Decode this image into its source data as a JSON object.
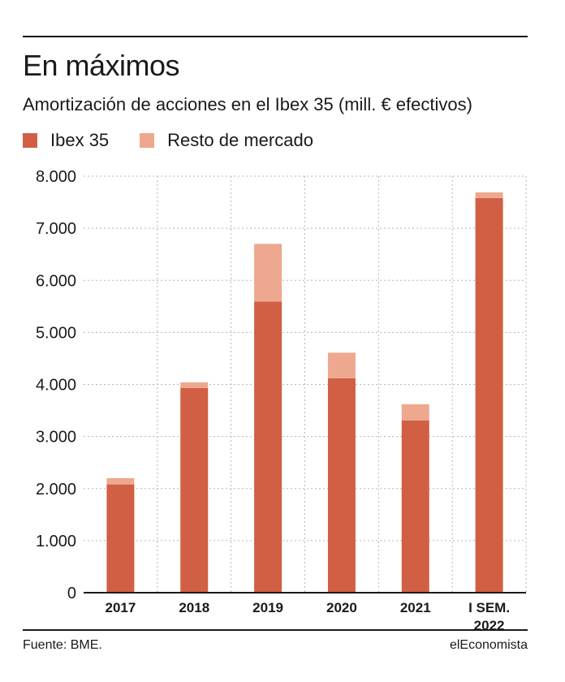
{
  "header": {
    "title": "En máximos",
    "subtitle": "Amortización de acciones en el Ibex 35 (mill. € efectivos)"
  },
  "footer": {
    "source": "Fuente: BME.",
    "brand": "elEconomista"
  },
  "colors": {
    "ibex": "#d15f44",
    "resto": "#eea890",
    "grid": "#b5b5b5",
    "text": "#1a1a1a"
  },
  "chart_data": {
    "type": "bar",
    "stacked": true,
    "categories": [
      "2017",
      "2018",
      "2019",
      "2020",
      "2021",
      "I SEM.\n2022"
    ],
    "series": [
      {
        "name": "Ibex 35",
        "values": [
          2080,
          3930,
          5590,
          4120,
          3310,
          7580
        ]
      },
      {
        "name": "Resto de mercado",
        "values": [
          120,
          110,
          1110,
          490,
          310,
          110
        ]
      }
    ],
    "ylim": [
      0,
      8000
    ],
    "yticks": [
      0,
      1000,
      2000,
      3000,
      4000,
      5000,
      6000,
      7000,
      8000
    ],
    "ytick_labels": [
      "0",
      "1.000",
      "2.000",
      "3.000",
      "4.000",
      "5.000",
      "6.000",
      "7.000",
      "8.000"
    ],
    "grid": true,
    "legend_position": "top-left"
  }
}
